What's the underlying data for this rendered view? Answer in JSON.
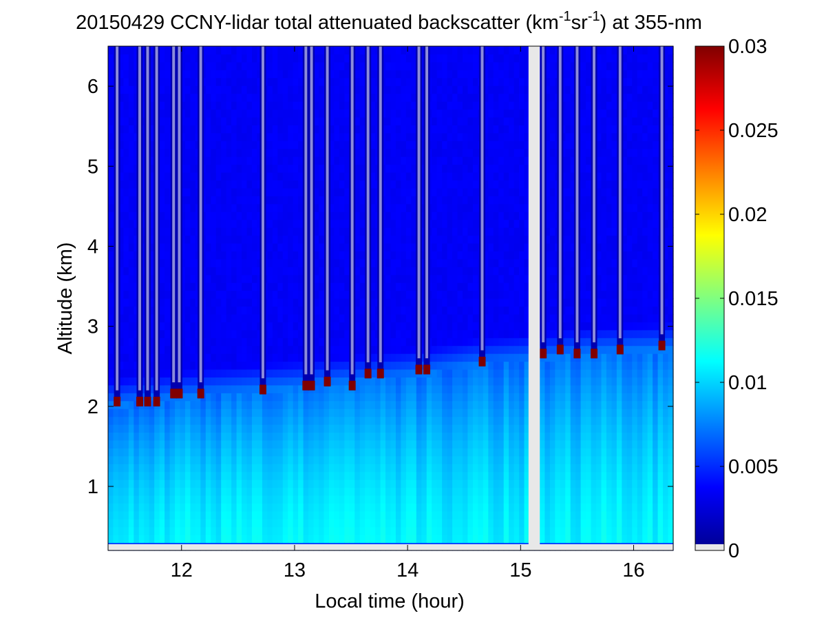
{
  "chart_data": {
    "type": "heatmap",
    "title": {
      "prefix": "20150429 CCNY-lidar total attenuated backscatter (km",
      "sup1": "-1",
      "mid": "sr",
      "sup2": "-1",
      "suffix": ") at 355-nm"
    },
    "xlabel": "Local time (hour)",
    "ylabel": "Altitude (km)",
    "xlim": [
      11.35,
      16.35
    ],
    "ylim": [
      0.2,
      6.5
    ],
    "x_ticks": [
      12,
      13,
      14,
      15,
      16
    ],
    "y_ticks": [
      1,
      2,
      3,
      4,
      5,
      6
    ],
    "colorbar": {
      "min": 0,
      "max": 0.03,
      "ticks": [
        0,
        0.005,
        0.01,
        0.015,
        0.02,
        0.025,
        0.03
      ],
      "tick_labels": [
        "0",
        "0.005",
        "0.01",
        "0.015",
        "0.02",
        "0.025",
        "0.03"
      ],
      "colormap": "jet",
      "colors": [
        "#00008f",
        "#0000ff",
        "#0080ff",
        "#00ffff",
        "#80ff80",
        "#ffff00",
        "#ff8000",
        "#ff0000",
        "#800000"
      ]
    },
    "aerosol_layer": {
      "surface_value": 0.0095,
      "top_km": [
        [
          11.4,
          2.0
        ],
        [
          12.0,
          2.1
        ],
        [
          12.8,
          2.2
        ],
        [
          13.6,
          2.3
        ],
        [
          14.2,
          2.4
        ],
        [
          14.6,
          2.5
        ],
        [
          15.0,
          2.55
        ],
        [
          15.6,
          2.65
        ],
        [
          16.3,
          2.7
        ]
      ]
    },
    "free_troposphere_value": 0.0035,
    "no_data_interval_hour": [
      15.07,
      15.17
    ],
    "clouds": [
      {
        "time": 11.43,
        "base_km": 2.0
      },
      {
        "time": 11.63,
        "base_km": 2.0
      },
      {
        "time": 11.7,
        "base_km": 2.0
      },
      {
        "time": 11.78,
        "base_km": 2.0
      },
      {
        "time": 11.93,
        "base_km": 2.1
      },
      {
        "time": 11.98,
        "base_km": 2.1
      },
      {
        "time": 12.17,
        "base_km": 2.1
      },
      {
        "time": 12.72,
        "base_km": 2.15
      },
      {
        "time": 13.1,
        "base_km": 2.2
      },
      {
        "time": 13.15,
        "base_km": 2.2
      },
      {
        "time": 13.29,
        "base_km": 2.25
      },
      {
        "time": 13.51,
        "base_km": 2.2
      },
      {
        "time": 13.65,
        "base_km": 2.35
      },
      {
        "time": 13.76,
        "base_km": 2.35
      },
      {
        "time": 14.1,
        "base_km": 2.4
      },
      {
        "time": 14.17,
        "base_km": 2.4
      },
      {
        "time": 14.66,
        "base_km": 2.5
      },
      {
        "time": 15.2,
        "base_km": 2.6
      },
      {
        "time": 15.35,
        "base_km": 2.65
      },
      {
        "time": 15.5,
        "base_km": 2.6
      },
      {
        "time": 15.65,
        "base_km": 2.6
      },
      {
        "time": 15.88,
        "base_km": 2.65
      },
      {
        "time": 16.25,
        "base_km": 2.7
      }
    ]
  }
}
